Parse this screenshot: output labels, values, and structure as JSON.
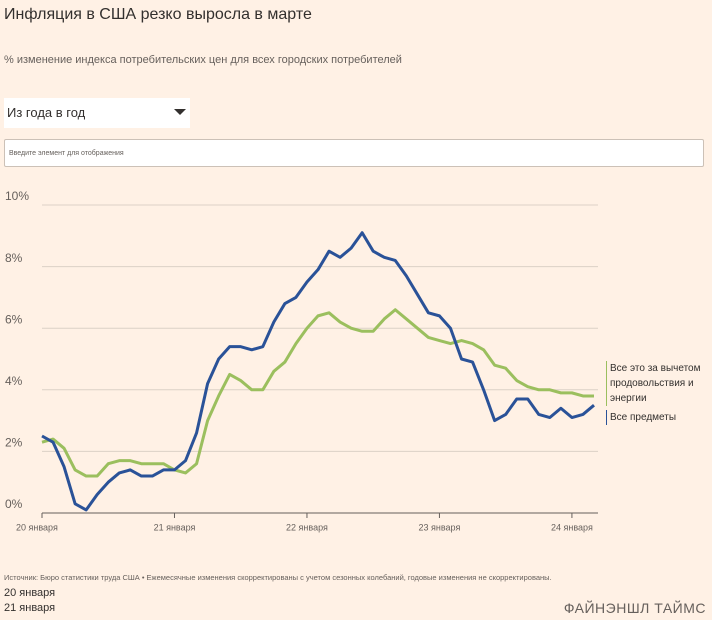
{
  "chart_data": {
    "type": "line",
    "title": "Инфляция в США резко выросла в марте",
    "subtitle": "% изменение индекса потребительских цен для всех городских потребителей",
    "categories": [
      "20 января",
      null,
      null,
      null,
      null,
      null,
      null,
      null,
      null,
      null,
      null,
      null,
      "21 января",
      null,
      null,
      null,
      null,
      null,
      null,
      null,
      null,
      null,
      null,
      null,
      "22 января",
      null,
      null,
      null,
      null,
      null,
      null,
      null,
      null,
      null,
      null,
      null,
      "23 января",
      null,
      null,
      null,
      null,
      null,
      null,
      null,
      null,
      null,
      null,
      null,
      "24 января",
      null,
      null
    ],
    "series": [
      {
        "name": "Все предметы",
        "color": "#2a5298",
        "values": [
          2.5,
          2.3,
          1.5,
          0.3,
          0.1,
          0.6,
          1.0,
          1.3,
          1.4,
          1.2,
          1.2,
          1.4,
          1.4,
          1.7,
          2.6,
          4.2,
          5.0,
          5.4,
          5.4,
          5.3,
          5.4,
          6.2,
          6.8,
          7.0,
          7.5,
          7.9,
          8.5,
          8.3,
          8.6,
          9.1,
          8.5,
          8.3,
          8.2,
          7.7,
          7.1,
          6.5,
          6.4,
          6.0,
          5.0,
          4.9,
          4.0,
          3.0,
          3.2,
          3.7,
          3.7,
          3.2,
          3.1,
          3.4,
          3.1,
          3.2,
          3.5
        ]
      },
      {
        "name": "Все это за вычетом продовольствия и энергии",
        "color": "#9bbf5e",
        "values": [
          2.3,
          2.4,
          2.1,
          1.4,
          1.2,
          1.2,
          1.6,
          1.7,
          1.7,
          1.6,
          1.6,
          1.6,
          1.4,
          1.3,
          1.6,
          3.0,
          3.8,
          4.5,
          4.3,
          4.0,
          4.0,
          4.6,
          4.9,
          5.5,
          6.0,
          6.4,
          6.5,
          6.2,
          6.0,
          5.9,
          5.9,
          6.3,
          6.6,
          6.3,
          6.0,
          5.7,
          5.6,
          5.5,
          5.6,
          5.5,
          5.3,
          4.8,
          4.7,
          4.3,
          4.1,
          4.0,
          4.0,
          3.9,
          3.9,
          3.8,
          3.8
        ]
      }
    ],
    "ylim": [
      0,
      10
    ],
    "yticks": [
      {
        "value": 0,
        "label": "0%"
      },
      {
        "value": 2,
        "label": "2%"
      },
      {
        "value": 4,
        "label": "4%"
      },
      {
        "value": 6,
        "label": "6%"
      },
      {
        "value": 8,
        "label": "8%"
      },
      {
        "value": 10,
        "label": "10%"
      }
    ],
    "grid": true
  },
  "controls": {
    "dropdown": "Из года в год",
    "input_placeholder": "Введите элемент для отображения"
  },
  "footer": {
    "source": "Источник: Бюро статистики труда США • Ежемесячные изменения скорректированы с учетом сезонных колебаний, годовые изменения не скорректированы.",
    "notes": [
      "20 января",
      "21 января"
    ],
    "brand": "ФАЙНЭНШЛ ТАЙМС"
  }
}
